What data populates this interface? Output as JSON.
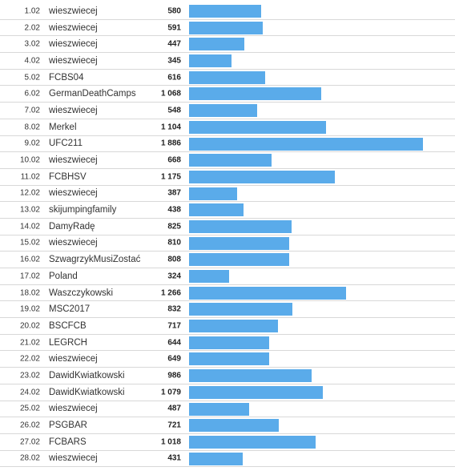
{
  "chart_data": {
    "type": "bar",
    "orientation": "horizontal",
    "categories": [
      "1.02",
      "2.02",
      "3.02",
      "4.02",
      "5.02",
      "6.02",
      "7.02",
      "8.02",
      "9.02",
      "10.02",
      "11.02",
      "12.02",
      "13.02",
      "14.02",
      "15.02",
      "16.02",
      "17.02",
      "18.02",
      "19.02",
      "20.02",
      "21.02",
      "22.02",
      "23.02",
      "24.02",
      "25.02",
      "26.02",
      "27.02",
      "28.02"
    ],
    "labels": [
      "wieszwiecej",
      "wieszwiecej",
      "wieszwiecej",
      "wieszwiecej",
      "FCBS04",
      "GermanDeathCamps",
      "wieszwiecej",
      "Merkel",
      "UFC211",
      "wieszwiecej",
      "FCBHSV",
      "wieszwiecej",
      "skijumpingfamily",
      "DamyRadę",
      "wieszwiecej",
      "SzwagrzykMusiZostać",
      "Poland",
      "Waszczykowski",
      "MSC2017",
      "BSCFCB",
      "LEGRCH",
      "wieszwiecej",
      "DawidKwiatkowski",
      "DawidKwiatkowski",
      "wieszwiecej",
      "PSGBAR",
      "FCBARS",
      "wieszwiecej"
    ],
    "values": [
      580,
      591,
      447,
      345,
      616,
      1068,
      548,
      1104,
      1886,
      668,
      1175,
      387,
      438,
      825,
      810,
      808,
      324,
      1266,
      832,
      717,
      644,
      649,
      986,
      1079,
      487,
      721,
      1018,
      431
    ],
    "value_labels": [
      "580",
      "591",
      "447",
      "345",
      "616",
      "1 068",
      "548",
      "1 104",
      "1 886",
      "668",
      "1 175",
      "387",
      "438",
      "825",
      "810",
      "808",
      "324",
      "1 266",
      "832",
      "717",
      "644",
      "649",
      "986",
      "1 079",
      "487",
      "721",
      "1 018",
      "431"
    ],
    "xlim": [
      0,
      1886
    ],
    "color": "#5aabea",
    "grid": false
  }
}
